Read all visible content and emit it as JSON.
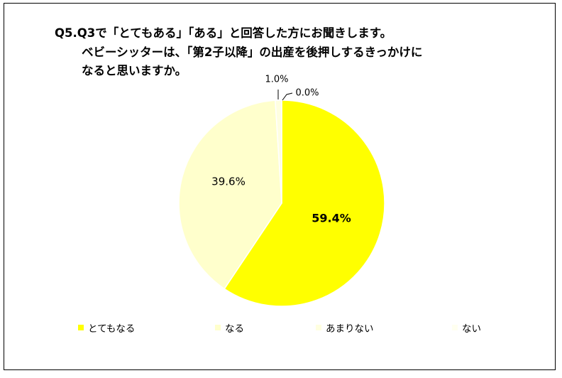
{
  "title": {
    "line1": "Q5.Q3で「とてもある」「ある」と回答した方にお聞きします。",
    "line2": "ベビーシッターは、「第2子以降」の出産を後押しするきっかけに",
    "line3": "なると思いますか。"
  },
  "chart_data": {
    "type": "pie",
    "title": "Q5.Q3で「とてもある」「ある」と回答した方にお聞きします。ベビーシッターは、「第2子以降」の出産を後押しするきっかけになると思いますか。",
    "start": "top (12 o'clock), clockwise",
    "legend_position": "bottom",
    "slices": [
      {
        "name": "とてもなる",
        "value": 59.4,
        "label": "59.4%",
        "color": "#FFFF00"
      },
      {
        "name": "なる",
        "value": 39.6,
        "label": "39.6%",
        "color": "#FFFFCC"
      },
      {
        "name": "あまりない",
        "value": 1.0,
        "label": "1.0%",
        "color": "#FFFFE0"
      },
      {
        "name": "ない",
        "value": 0.0,
        "label": "0.0%",
        "color": "#FFFFF0"
      }
    ]
  },
  "legend": [
    {
      "label": "とてもなる",
      "color": "#FFFF00"
    },
    {
      "label": "なる",
      "color": "#FFFFCC"
    },
    {
      "label": "あまりない",
      "color": "#FFFFE0"
    },
    {
      "label": "ない",
      "color": "#FFFFF0"
    }
  ]
}
